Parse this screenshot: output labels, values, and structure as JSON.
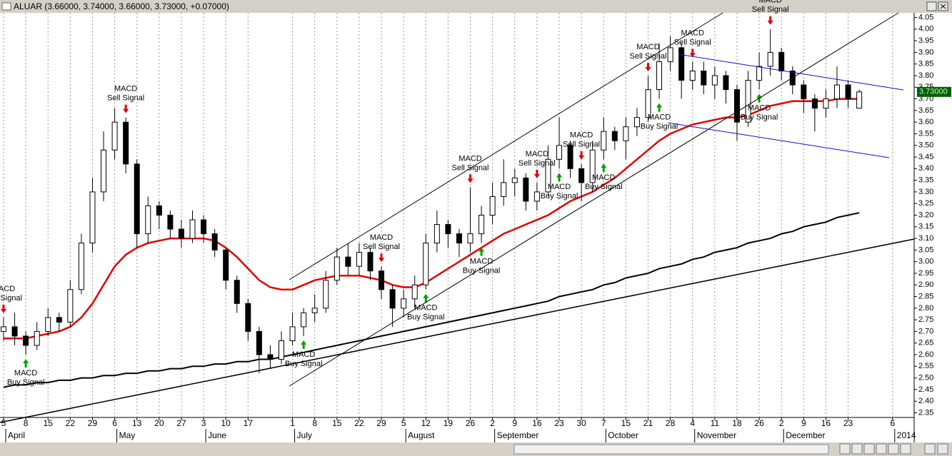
{
  "chart_data": {
    "type": "candlestick",
    "title": "ALUAR (3.66000, 3.74000, 3.66000, 3.73000, +0.07000)",
    "price_tag": "3.73000",
    "ylim": [
      2.33,
      4.07
    ],
    "yticks": [
      2.35,
      {
        "value": 2.4,
        "label": "2.40"
      },
      2.45,
      {
        "value": 2.5,
        "label": "2.50"
      },
      2.55,
      {
        "value": 2.6,
        "label": "2.60"
      },
      2.65,
      {
        "value": 2.7,
        "label": "2.70"
      },
      2.75,
      {
        "value": 2.8,
        "label": "2.80"
      },
      2.85,
      {
        "value": 2.9,
        "label": "2.90"
      },
      2.95,
      {
        "value": 3,
        "label": "3.00"
      },
      3.05,
      {
        "value": 3.1,
        "label": "3.10"
      },
      3.15,
      {
        "value": 3.2,
        "label": "3.20"
      },
      3.25,
      {
        "value": 3.3,
        "label": "3.30"
      },
      3.35,
      {
        "value": 3.4,
        "label": "3.40"
      },
      3.45,
      {
        "value": 3.5,
        "label": "3.50"
      },
      3.55,
      {
        "value": 3.6,
        "label": "3.60"
      },
      3.65,
      {
        "value": 3.7,
        "label": "3.70"
      },
      3.75,
      {
        "value": 3.8,
        "label": "3.80"
      },
      3.85,
      {
        "value": 3.9,
        "label": "3.90"
      },
      3.95,
      {
        "value": 4,
        "label": "4.00"
      },
      4.05
    ],
    "grid": true,
    "categories": [
      "5",
      null,
      "8",
      null,
      "15",
      null,
      "22",
      null,
      "29",
      null,
      "6",
      null,
      "13",
      null,
      "20",
      null,
      "27",
      null,
      "3",
      null,
      "10",
      null,
      "17",
      null,
      null,
      null,
      "1",
      null,
      "8",
      null,
      "15",
      null,
      "22",
      null,
      "29",
      null,
      "5",
      null,
      "12",
      null,
      "19",
      null,
      "26",
      null,
      "2",
      null,
      "9",
      null,
      "16",
      null,
      "23",
      null,
      "30",
      null,
      "7",
      null,
      "15",
      null,
      "21",
      null,
      "28",
      null,
      "4",
      null,
      "11",
      null,
      "18",
      null,
      "26",
      null,
      "2",
      null,
      "9",
      null,
      "16",
      null,
      "23",
      null,
      null,
      null,
      "6",
      null
    ],
    "months": [
      "April",
      null,
      null,
      null,
      null,
      null,
      null,
      null,
      null,
      null,
      "May",
      null,
      null,
      null,
      null,
      null,
      null,
      null,
      "June",
      null,
      null,
      null,
      null,
      null,
      null,
      null,
      "July",
      null,
      null,
      null,
      null,
      null,
      null,
      null,
      null,
      null,
      "August",
      null,
      null,
      null,
      null,
      null,
      null,
      null,
      "September",
      null,
      null,
      null,
      null,
      null,
      null,
      null,
      null,
      null,
      "October",
      null,
      null,
      null,
      null,
      null,
      null,
      null,
      "November",
      null,
      null,
      null,
      null,
      null,
      null,
      null,
      "December",
      null,
      null,
      null,
      null,
      null,
      null,
      null,
      null,
      null,
      "2014",
      null
    ],
    "open": [
      2.7,
      2.72,
      2.68,
      2.64,
      2.7,
      2.76,
      2.74,
      2.88,
      3.08,
      3.3,
      3.48,
      3.6,
      3.42,
      3.12,
      3.24,
      3.2,
      3.14,
      3.1,
      3.18,
      3.12,
      3.05,
      2.92,
      2.82,
      2.7,
      2.6,
      2.58,
      2.66,
      2.72,
      2.78,
      2.8,
      2.92,
      3.02,
      2.98,
      3.04,
      2.96,
      2.88,
      2.8,
      2.84,
      2.9,
      3.08,
      3.16,
      3.12,
      3.08,
      3.12,
      3.2,
      3.28,
      3.34,
      3.36,
      3.26,
      3.3,
      3.44,
      3.5,
      3.4,
      3.34,
      3.48,
      3.56,
      3.52,
      3.58,
      3.62,
      3.74,
      3.86,
      3.92,
      3.78,
      3.82,
      3.76,
      3.8,
      3.74,
      3.6,
      3.78,
      3.84,
      3.9,
      3.82,
      3.76,
      3.7,
      3.66,
      3.7,
      3.76,
      3.66,
      null,
      null,
      null,
      null
    ],
    "high": [
      2.76,
      2.78,
      2.7,
      2.74,
      2.8,
      2.78,
      2.92,
      3.12,
      3.36,
      3.56,
      3.66,
      3.62,
      3.44,
      3.28,
      3.26,
      3.22,
      3.18,
      3.22,
      3.2,
      3.14,
      3.06,
      2.94,
      2.84,
      2.72,
      2.64,
      2.7,
      2.78,
      2.8,
      2.86,
      2.96,
      3.06,
      3.08,
      3.08,
      3.06,
      2.98,
      2.9,
      2.88,
      2.94,
      3.12,
      3.22,
      3.18,
      3.14,
      3.32,
      3.24,
      3.34,
      3.44,
      3.4,
      3.38,
      3.34,
      3.5,
      3.62,
      3.52,
      3.42,
      3.52,
      3.62,
      3.58,
      3.62,
      3.66,
      3.8,
      3.94,
      3.97,
      3.94,
      3.86,
      3.86,
      3.84,
      3.82,
      3.76,
      3.82,
      3.9,
      4.0,
      3.92,
      3.84,
      3.78,
      3.72,
      3.74,
      3.84,
      3.78,
      3.74,
      null,
      null,
      null,
      null
    ],
    "low": [
      2.66,
      2.64,
      2.6,
      2.62,
      2.68,
      2.7,
      2.72,
      2.86,
      3.04,
      3.26,
      3.44,
      3.38,
      3.06,
      3.08,
      3.14,
      3.1,
      3.06,
      3.08,
      3.08,
      3.02,
      2.88,
      2.78,
      2.66,
      2.52,
      2.54,
      2.56,
      2.64,
      2.68,
      2.74,
      2.78,
      2.9,
      2.94,
      2.94,
      2.92,
      2.84,
      2.72,
      2.76,
      2.8,
      2.88,
      3.04,
      3.06,
      3.02,
      3.04,
      3.08,
      3.16,
      3.24,
      3.28,
      3.22,
      3.22,
      3.28,
      3.4,
      3.36,
      3.26,
      3.3,
      3.44,
      3.48,
      3.44,
      3.54,
      3.6,
      3.7,
      3.82,
      3.7,
      3.74,
      3.72,
      3.7,
      3.68,
      3.52,
      3.58,
      3.74,
      3.8,
      3.78,
      3.72,
      3.64,
      3.56,
      3.62,
      3.66,
      3.66,
      3.66,
      null,
      null,
      null,
      null
    ],
    "close": [
      2.72,
      2.68,
      2.64,
      2.7,
      2.76,
      2.74,
      2.88,
      3.08,
      3.3,
      3.48,
      3.6,
      3.42,
      3.12,
      3.24,
      3.2,
      3.14,
      3.1,
      3.18,
      3.12,
      3.05,
      2.92,
      2.82,
      2.7,
      2.6,
      2.58,
      2.66,
      2.72,
      2.78,
      2.8,
      2.92,
      3.02,
      2.98,
      3.04,
      2.96,
      2.88,
      2.8,
      2.84,
      2.9,
      3.08,
      3.16,
      3.12,
      3.08,
      3.12,
      3.2,
      3.28,
      3.34,
      3.36,
      3.26,
      3.3,
      3.44,
      3.5,
      3.4,
      3.34,
      3.48,
      3.56,
      3.52,
      3.58,
      3.62,
      3.74,
      3.86,
      3.92,
      3.78,
      3.82,
      3.76,
      3.8,
      3.74,
      3.6,
      3.78,
      3.84,
      3.9,
      3.82,
      3.76,
      3.7,
      3.66,
      3.7,
      3.76,
      3.7,
      3.73,
      null,
      null,
      null,
      null
    ],
    "lines": [
      {
        "color": "#e00000",
        "values": [
          2.67,
          2.67,
          2.67,
          2.68,
          2.69,
          2.7,
          2.72,
          2.76,
          2.82,
          2.9,
          2.98,
          3.03,
          3.06,
          3.08,
          3.09,
          3.1,
          3.1,
          3.1,
          3.1,
          3.09,
          3.06,
          3.02,
          2.97,
          2.92,
          2.89,
          2.88,
          2.88,
          2.9,
          2.92,
          2.93,
          2.94,
          2.94,
          2.94,
          2.93,
          2.92,
          2.9,
          2.89,
          2.89,
          2.91,
          2.94,
          2.97,
          3.0,
          3.03,
          3.06,
          3.09,
          3.12,
          3.14,
          3.16,
          3.18,
          3.2,
          3.23,
          3.26,
          3.28,
          3.3,
          3.33,
          3.36,
          3.4,
          3.44,
          3.48,
          3.52,
          3.55,
          3.57,
          3.59,
          3.6,
          3.61,
          3.62,
          3.62,
          3.63,
          3.65,
          3.67,
          3.68,
          3.69,
          3.69,
          3.69,
          3.69,
          3.7,
          3.7,
          3.7,
          null,
          null,
          null,
          null
        ]
      },
      {
        "color": "#000000",
        "values": [
          2.46,
          2.47,
          2.47,
          2.48,
          2.48,
          2.49,
          2.49,
          2.5,
          2.5,
          2.51,
          2.51,
          2.52,
          2.52,
          2.53,
          2.53,
          2.54,
          2.54,
          2.55,
          2.55,
          2.56,
          2.56,
          2.57,
          2.57,
          2.58,
          2.58,
          2.59,
          2.6,
          2.61,
          2.62,
          2.63,
          2.64,
          2.65,
          2.66,
          2.67,
          2.68,
          2.69,
          2.7,
          2.71,
          2.72,
          2.73,
          2.74,
          2.75,
          2.76,
          2.77,
          2.78,
          2.79,
          2.8,
          2.81,
          2.82,
          2.83,
          2.85,
          2.86,
          2.87,
          2.88,
          2.9,
          2.91,
          2.93,
          2.94,
          2.95,
          2.97,
          2.98,
          2.99,
          3.01,
          3.02,
          3.04,
          3.05,
          3.06,
          3.08,
          3.09,
          3.1,
          3.12,
          3.13,
          3.15,
          3.16,
          3.17,
          3.19,
          3.2,
          3.21,
          null,
          null,
          null,
          null
        ]
      }
    ],
    "signal_labels": {
      "buy": [
        "MACD",
        "Buy Signal"
      ],
      "sell": [
        "MACD",
        "Sell Signal"
      ]
    },
    "signals": [
      "sell",
      null,
      "buy",
      null,
      null,
      null,
      null,
      null,
      null,
      null,
      null,
      "sell",
      null,
      null,
      null,
      null,
      null,
      null,
      null,
      null,
      null,
      null,
      null,
      null,
      null,
      null,
      null,
      "buy",
      null,
      null,
      null,
      null,
      null,
      null,
      "sell",
      null,
      null,
      null,
      "buy",
      null,
      null,
      null,
      "sell",
      "buy",
      null,
      null,
      null,
      null,
      "sell",
      null,
      "buy",
      null,
      "sell",
      null,
      "buy",
      null,
      null,
      null,
      "sell",
      "buy",
      null,
      null,
      "sell",
      null,
      null,
      null,
      null,
      null,
      "buy",
      "sell",
      null,
      null,
      null,
      null,
      null,
      null,
      null,
      null,
      null,
      null,
      null,
      null
    ]
  }
}
